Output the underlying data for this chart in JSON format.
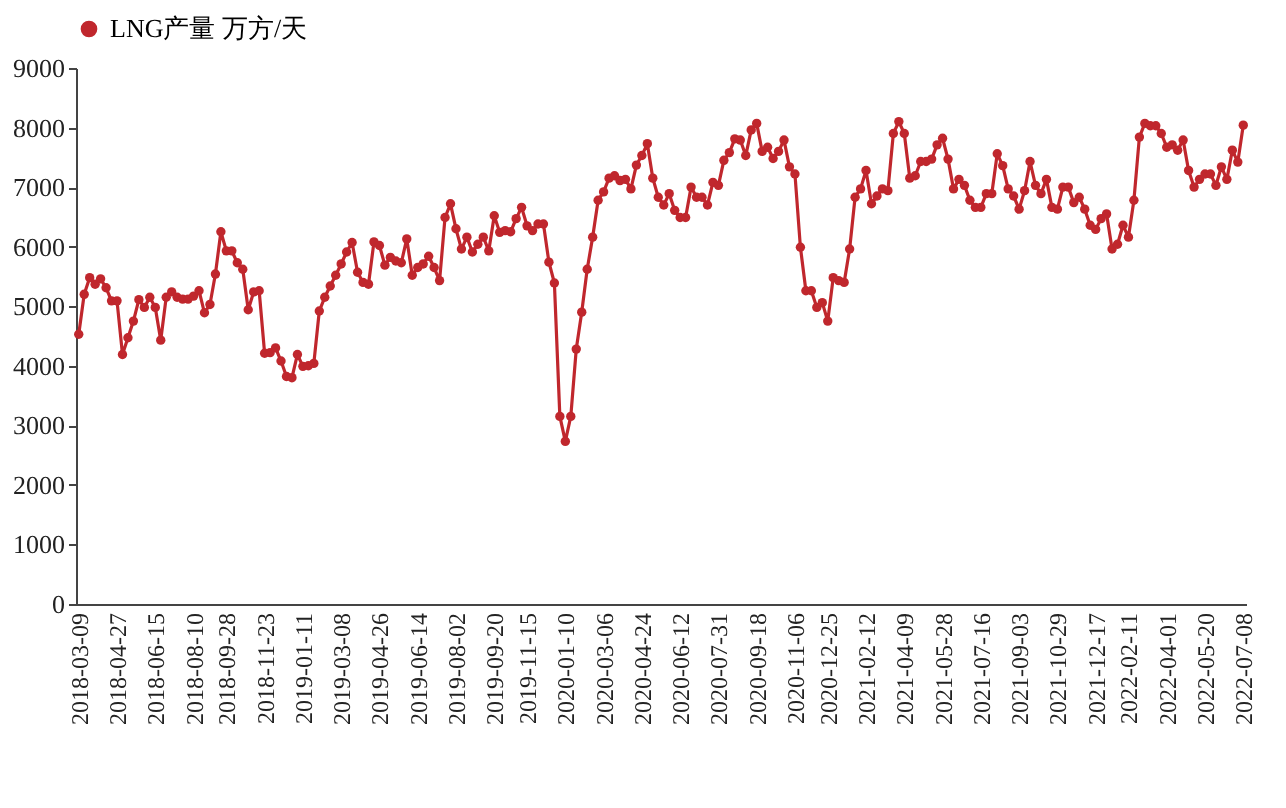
{
  "chart_data": {
    "type": "line",
    "marker": "circle",
    "line_style": "solid",
    "legend": "top",
    "grid": false,
    "ylim": [
      0,
      9000
    ],
    "categories": [
      "2018-03-09",
      null,
      null,
      null,
      null,
      null,
      null,
      "2018-04-27",
      null,
      null,
      null,
      null,
      null,
      null,
      "2018-06-15",
      null,
      null,
      null,
      null,
      null,
      null,
      "2018-08-10",
      null,
      null,
      null,
      null,
      null,
      "2018-09-28",
      null,
      null,
      null,
      null,
      null,
      null,
      "2018-11-23",
      null,
      null,
      null,
      null,
      null,
      null,
      "2019-01-11",
      null,
      null,
      null,
      null,
      null,
      null,
      "2019-03-08",
      null,
      null,
      null,
      null,
      null,
      null,
      "2019-04-26",
      null,
      null,
      null,
      null,
      null,
      null,
      "2019-06-14",
      null,
      null,
      null,
      null,
      null,
      null,
      "2019-08-02",
      null,
      null,
      null,
      null,
      null,
      null,
      "2019-09-20",
      null,
      null,
      null,
      null,
      null,
      "2019-11-15",
      null,
      null,
      null,
      null,
      null,
      null,
      "2020-01-10",
      null,
      null,
      null,
      null,
      null,
      null,
      "2020-03-06",
      null,
      null,
      null,
      null,
      null,
      null,
      "2020-04-24",
      null,
      null,
      null,
      null,
      null,
      null,
      "2020-06-12",
      null,
      null,
      null,
      null,
      null,
      null,
      "2020-07-31",
      null,
      null,
      null,
      null,
      null,
      null,
      "2020-09-18",
      null,
      null,
      null,
      null,
      null,
      null,
      "2020-11-06",
      null,
      null,
      null,
      null,
      null,
      "2020-12-25",
      null,
      null,
      null,
      null,
      null,
      null,
      "2021-02-12",
      null,
      null,
      null,
      null,
      null,
      null,
      "2021-04-09",
      null,
      null,
      null,
      null,
      null,
      null,
      "2021-05-28",
      null,
      null,
      null,
      null,
      null,
      null,
      "2021-07-16",
      null,
      null,
      null,
      null,
      null,
      null,
      "2021-09-03",
      null,
      null,
      null,
      null,
      null,
      null,
      "2021-10-29",
      null,
      null,
      null,
      null,
      null,
      null,
      "2021-12-17",
      null,
      null,
      null,
      null,
      null,
      "2022-02-11",
      null,
      null,
      null,
      null,
      null,
      null,
      "2022-04-01",
      null,
      null,
      null,
      null,
      null,
      null,
      "2022-05-20",
      null,
      null,
      null,
      null,
      null,
      null,
      "2022-07-08"
    ],
    "yticks": [
      0,
      1000,
      2000,
      3000,
      4000,
      5000,
      6000,
      7000,
      8000,
      9000
    ],
    "series": [
      {
        "name": "LNG产量 万方/天",
        "color": "#c0272d",
        "values": [
          4530,
          5200,
          5480,
          5370,
          5460,
          5310,
          5090,
          5090,
          4190,
          4470,
          4750,
          5110,
          4980,
          5150,
          4980,
          4430,
          5150,
          5240,
          5150,
          5120,
          5120,
          5170,
          5260,
          4890,
          5030,
          5540,
          6250,
          5930,
          5930,
          5730,
          5620,
          4940,
          5240,
          5260,
          4210,
          4220,
          4300,
          4080,
          3820,
          3800,
          4190,
          3990,
          4000,
          4040,
          4920,
          5150,
          5340,
          5520,
          5710,
          5910,
          6070,
          5570,
          5400,
          5370,
          6080,
          6020,
          5690,
          5820,
          5760,
          5730,
          6130,
          5520,
          5650,
          5710,
          5840,
          5650,
          5430,
          6490,
          6720,
          6300,
          5960,
          6160,
          5910,
          6040,
          6160,
          5930,
          6520,
          6240,
          6270,
          6250,
          6470,
          6660,
          6350,
          6270,
          6380,
          6380,
          5740,
          5390,
          3150,
          2730,
          3150,
          4280,
          4900,
          5620,
          6160,
          6780,
          6920,
          7150,
          7190,
          7110,
          7130,
          6970,
          7370,
          7530,
          7730,
          7150,
          6830,
          6700,
          6890,
          6610,
          6490,
          6490,
          7000,
          6830,
          6830,
          6700,
          7080,
          7030,
          7450,
          7580,
          7810,
          7790,
          7530,
          7960,
          8070,
          7600,
          7670,
          7480,
          7600,
          7790,
          7340,
          7220,
          5990,
          5260,
          5260,
          4980,
          5060,
          4750,
          5480,
          5430,
          5400,
          5960,
          6830,
          6970,
          7280,
          6720,
          6850,
          6970,
          6940,
          7900,
          8100,
          7900,
          7150,
          7190,
          7430,
          7430,
          7470,
          7710,
          7820,
          7470,
          6970,
          7130,
          7030,
          6780,
          6660,
          6660,
          6890,
          6890,
          7560,
          7360,
          6970,
          6850,
          6630,
          6940,
          7430,
          7030,
          6890,
          7130,
          6660,
          6630,
          7000,
          7000,
          6740,
          6830,
          6630,
          6360,
          6290,
          6470,
          6550,
          5960,
          6040,
          6360,
          6160,
          6780,
          7840,
          8070,
          8030,
          8030,
          7900,
          7670,
          7710,
          7620,
          7790,
          7280,
          7000,
          7130,
          7220,
          7220,
          7030,
          7340,
          7130,
          7620,
          7420,
          8040
        ]
      }
    ]
  }
}
